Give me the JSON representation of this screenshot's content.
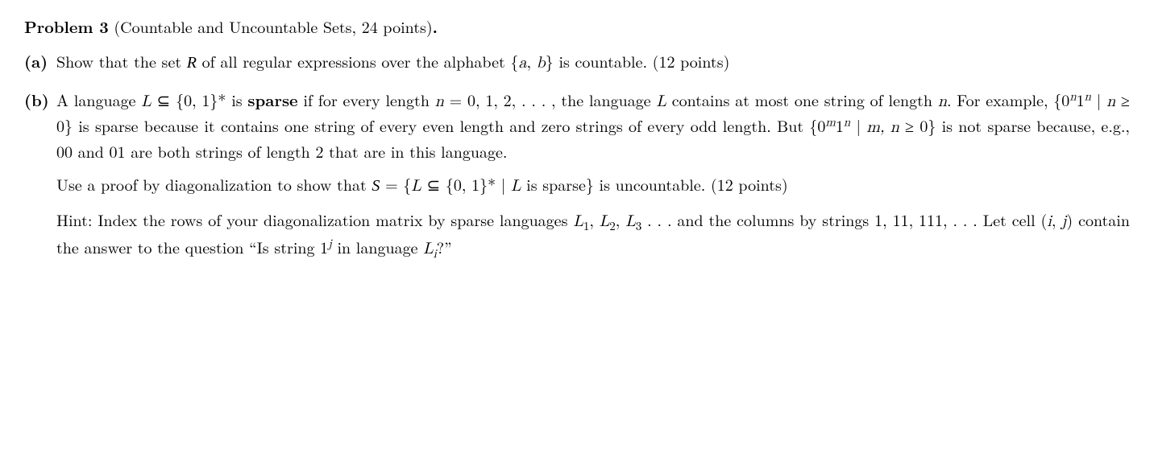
{
  "problem": {
    "label": "Problem 3",
    "title_paren": "(Countable and Uncountable Sets, 24 points)",
    "period": "."
  },
  "partA": {
    "label": "(a)",
    "text_before_cal": "Show that the set ",
    "cal_R": "R",
    "text_after_cal": " of all regular expressions over the alphabet {",
    "alpha_a": "a",
    "alpha_sep": ", ",
    "alpha_b": "b",
    "text_end": "} is countable.   (12 points)"
  },
  "partB": {
    "label": "(b)",
    "p1_seg1": "A language ",
    "p1_L": "L",
    "p1_seg2": " ⊆ {0, 1}* is ",
    "p1_sparse": "sparse",
    "p1_seg3": " if for every length ",
    "p1_n": "n",
    "p1_seg4": " = 0, 1, 2, . . . , the language ",
    "p1_L2": "L",
    "p1_seg5": " contains at most one string of length ",
    "p1_n2": "n",
    "p1_seg6": ". For example, {0",
    "p1_exp_n1": "n",
    "p1_seg7": "1",
    "p1_exp_n2": "n",
    "p1_seg8": " | ",
    "p1_n3": "n",
    "p1_seg9": " ≥ 0} is sparse because it contains one string of every even length and zero strings of every odd length. But {0",
    "p1_exp_m": "m",
    "p1_seg10": "1",
    "p1_exp_n3": "n",
    "p1_seg11": " | ",
    "p1_mn": "m, n",
    "p1_seg12": " ≥ 0} is not sparse because, e.g., 00 and 01 are both strings of length 2 that are in this language.",
    "p2_seg1": "Use a proof by diagonalization to show that ",
    "p2_calS": "S",
    "p2_seg2": " = {",
    "p2_L": "L",
    "p2_seg3": " ⊆ {0, 1}* | ",
    "p2_L2": "L",
    "p2_seg4": " is sparse} is uncountable. (12 points)",
    "p3_seg1": "Hint: Index the rows of your diagonalization matrix by sparse languages ",
    "p3_L1": "L",
    "p3_sub1": "1",
    "p3_c1": ", ",
    "p3_L2": "L",
    "p3_sub2": "2",
    "p3_c2": ", ",
    "p3_L3": "L",
    "p3_sub3": "3",
    "p3_dots": " . . . ",
    "p3_seg2": " and the columns by strings 1, 11, 111, . . .  Let cell (",
    "p3_i": "i",
    "p3_c3": ", ",
    "p3_j": "j",
    "p3_seg3": ") contain the answer to the question “Is string 1",
    "p3_expj": "j",
    "p3_seg4": " in language ",
    "p3_Li": "L",
    "p3_subi": "i",
    "p3_seg5": "?”"
  }
}
